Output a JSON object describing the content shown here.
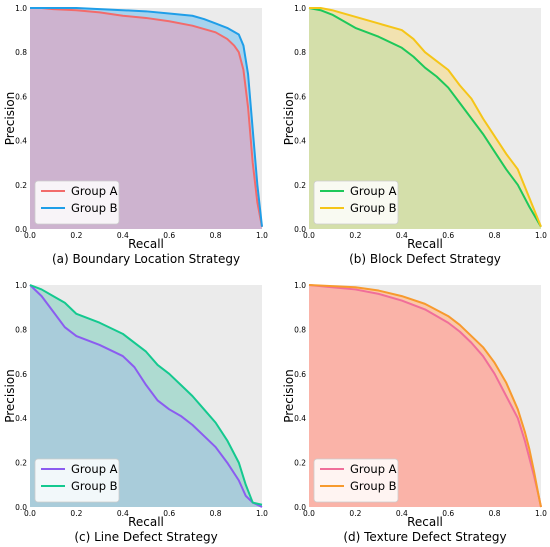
{
  "figure": {
    "background": "#ffffff",
    "plot_background": "#ebebeb",
    "panels": [
      {
        "key": "a",
        "caption": "(a) Boundary Location Strategy",
        "legend_placement": "lower-left"
      },
      {
        "key": "b",
        "caption": "(b) Block Defect Strategy",
        "legend_placement": "lower-left"
      },
      {
        "key": "c",
        "caption": "(c) Line Defect Strategy",
        "legend_placement": "lower-left"
      },
      {
        "key": "d",
        "caption": "(d) Texture Defect Strategy",
        "legend_placement": "lower-left"
      }
    ]
  },
  "chart_data": [
    {
      "type": "area",
      "title": "(a) Boundary Location Strategy",
      "xlabel": "Recall",
      "ylabel": "Precision",
      "xlim": [
        0,
        1
      ],
      "ylim": [
        0,
        1
      ],
      "xticks": [
        "0.0",
        "0.2",
        "0.4",
        "0.6",
        "0.8",
        "1.0"
      ],
      "yticks": [
        "0.0",
        "0.2",
        "0.4",
        "0.6",
        "0.8",
        "1.0"
      ],
      "grid": false,
      "legend": "lower-left",
      "series": [
        {
          "name": "Group A",
          "color": "#f26b6b",
          "fill": "#cdb3cf",
          "x": [
            0.0,
            0.05,
            0.1,
            0.2,
            0.3,
            0.4,
            0.5,
            0.6,
            0.7,
            0.8,
            0.85,
            0.88,
            0.9,
            0.92,
            0.94,
            0.96,
            0.98,
            1.0
          ],
          "y": [
            1.0,
            1.0,
            0.995,
            0.99,
            0.98,
            0.965,
            0.955,
            0.94,
            0.92,
            0.89,
            0.86,
            0.83,
            0.8,
            0.72,
            0.55,
            0.3,
            0.12,
            0.01
          ]
        },
        {
          "name": "Group B",
          "color": "#1f9ee8",
          "fill": "#a6d3ee",
          "x": [
            0.0,
            0.1,
            0.2,
            0.3,
            0.4,
            0.5,
            0.6,
            0.7,
            0.75,
            0.8,
            0.85,
            0.9,
            0.92,
            0.94,
            0.96,
            0.98,
            1.0
          ],
          "y": [
            1.0,
            1.0,
            1.0,
            0.995,
            0.99,
            0.985,
            0.975,
            0.965,
            0.95,
            0.93,
            0.91,
            0.88,
            0.83,
            0.7,
            0.45,
            0.2,
            0.01
          ]
        }
      ]
    },
    {
      "type": "area",
      "title": "(b) Block Defect Strategy",
      "xlabel": "Recall",
      "ylabel": "Precision",
      "xlim": [
        0,
        1
      ],
      "ylim": [
        0,
        1
      ],
      "xticks": [
        "0.0",
        "0.2",
        "0.4",
        "0.6",
        "0.8",
        "1.0"
      ],
      "yticks": [
        "0.0",
        "0.2",
        "0.4",
        "0.6",
        "0.8",
        "1.0"
      ],
      "grid": false,
      "legend": "lower-left",
      "series": [
        {
          "name": "Group A",
          "color": "#1ec85a",
          "fill": "#d4dfaa",
          "x": [
            0.0,
            0.05,
            0.1,
            0.15,
            0.2,
            0.3,
            0.4,
            0.45,
            0.5,
            0.55,
            0.6,
            0.65,
            0.7,
            0.75,
            0.8,
            0.85,
            0.9,
            0.95,
            1.0
          ],
          "y": [
            1.0,
            0.99,
            0.97,
            0.94,
            0.91,
            0.87,
            0.82,
            0.78,
            0.73,
            0.69,
            0.64,
            0.57,
            0.5,
            0.43,
            0.35,
            0.27,
            0.2,
            0.1,
            0.01
          ]
        },
        {
          "name": "Group B",
          "color": "#f5c518",
          "fill": "#f2e2b0",
          "x": [
            0.0,
            0.05,
            0.1,
            0.2,
            0.3,
            0.4,
            0.45,
            0.5,
            0.55,
            0.6,
            0.65,
            0.7,
            0.75,
            0.8,
            0.85,
            0.9,
            0.95,
            1.0
          ],
          "y": [
            1.0,
            1.0,
            0.99,
            0.96,
            0.93,
            0.9,
            0.86,
            0.8,
            0.76,
            0.72,
            0.65,
            0.59,
            0.5,
            0.42,
            0.34,
            0.27,
            0.14,
            0.01
          ]
        }
      ]
    },
    {
      "type": "area",
      "title": "(c) Line Defect Strategy",
      "xlabel": "Recall",
      "ylabel": "Precision",
      "xlim": [
        0,
        1
      ],
      "ylim": [
        0,
        1
      ],
      "xticks": [
        "0.0",
        "0.2",
        "0.4",
        "0.6",
        "0.8",
        "1.0"
      ],
      "yticks": [
        "0.0",
        "0.2",
        "0.4",
        "0.6",
        "0.8",
        "1.0"
      ],
      "grid": false,
      "legend": "lower-left",
      "series": [
        {
          "name": "Group A",
          "color": "#8b5cf0",
          "fill": "#a9ccda",
          "x": [
            0.0,
            0.05,
            0.1,
            0.15,
            0.2,
            0.3,
            0.4,
            0.45,
            0.5,
            0.55,
            0.6,
            0.65,
            0.7,
            0.75,
            0.8,
            0.85,
            0.9,
            0.93,
            0.96,
            0.98,
            1.0
          ],
          "y": [
            1.0,
            0.95,
            0.88,
            0.81,
            0.77,
            0.73,
            0.68,
            0.63,
            0.55,
            0.48,
            0.44,
            0.41,
            0.37,
            0.32,
            0.27,
            0.2,
            0.12,
            0.05,
            0.02,
            0.01,
            0.0
          ]
        },
        {
          "name": "Group B",
          "color": "#14c98f",
          "fill": "#aedbd1",
          "x": [
            0.0,
            0.05,
            0.1,
            0.15,
            0.2,
            0.3,
            0.4,
            0.5,
            0.55,
            0.6,
            0.65,
            0.7,
            0.75,
            0.8,
            0.85,
            0.9,
            0.93,
            0.96,
            1.0
          ],
          "y": [
            1.0,
            0.98,
            0.95,
            0.92,
            0.87,
            0.83,
            0.78,
            0.7,
            0.64,
            0.6,
            0.55,
            0.5,
            0.44,
            0.38,
            0.3,
            0.2,
            0.1,
            0.02,
            0.01
          ]
        }
      ]
    },
    {
      "type": "area",
      "title": "(d) Texture Defect Strategy",
      "xlabel": "Recall",
      "ylabel": "Precision",
      "xlim": [
        0,
        1
      ],
      "ylim": [
        0,
        1
      ],
      "xticks": [
        "0.0",
        "0.2",
        "0.4",
        "0.6",
        "0.8",
        "1.0"
      ],
      "yticks": [
        "0.0",
        "0.2",
        "0.4",
        "0.6",
        "0.8",
        "1.0"
      ],
      "grid": false,
      "legend": "lower-left",
      "series": [
        {
          "name": "Group A",
          "color": "#f06e9a",
          "fill": "#fab3a8",
          "x": [
            0.0,
            0.1,
            0.2,
            0.3,
            0.4,
            0.5,
            0.6,
            0.65,
            0.7,
            0.75,
            0.8,
            0.85,
            0.9,
            0.93,
            0.95,
            0.97,
            0.99,
            1.0
          ],
          "y": [
            1.0,
            0.99,
            0.98,
            0.96,
            0.93,
            0.89,
            0.83,
            0.79,
            0.74,
            0.68,
            0.6,
            0.5,
            0.4,
            0.3,
            0.22,
            0.14,
            0.05,
            0.0
          ]
        },
        {
          "name": "Group B",
          "color": "#f79a2e",
          "fill": "#fbc9a8",
          "x": [
            0.0,
            0.1,
            0.2,
            0.3,
            0.4,
            0.5,
            0.6,
            0.65,
            0.7,
            0.75,
            0.8,
            0.85,
            0.9,
            0.93,
            0.95,
            0.97,
            0.99,
            1.0
          ],
          "y": [
            1.0,
            0.995,
            0.99,
            0.975,
            0.95,
            0.915,
            0.86,
            0.82,
            0.77,
            0.72,
            0.65,
            0.56,
            0.44,
            0.34,
            0.26,
            0.16,
            0.05,
            0.0
          ]
        }
      ]
    }
  ]
}
